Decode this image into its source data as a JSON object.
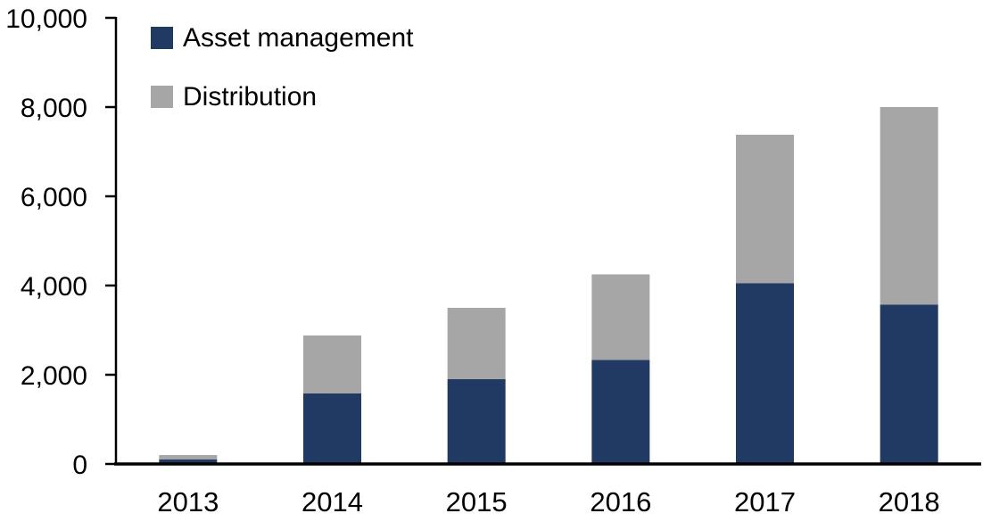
{
  "chart_data": {
    "type": "bar",
    "stacked": true,
    "title": "",
    "xlabel": "",
    "ylabel": "",
    "grid": false,
    "background": "#FFFFFF",
    "axis_color": "#000000",
    "legend_position": "top-left-inside",
    "categories": [
      "2013",
      "2014",
      "2015",
      "2016",
      "2017",
      "2018"
    ],
    "series": [
      {
        "name": "Asset management",
        "color": "#203A64",
        "values": [
          100,
          1580,
          1900,
          2330,
          4050,
          3570
        ]
      },
      {
        "name": "Distribution",
        "color": "#A6A6A6",
        "values": [
          100,
          1300,
          1600,
          1920,
          3330,
          4430
        ]
      }
    ],
    "totals": [
      200,
      2880,
      3500,
      4250,
      7380,
      8000
    ],
    "ylim": [
      0,
      10000
    ],
    "yticks": [
      0,
      2000,
      4000,
      6000,
      8000,
      10000
    ],
    "ytick_labels": [
      "0",
      "2,000",
      "4,000",
      "6,000",
      "8,000",
      "10,000"
    ]
  }
}
